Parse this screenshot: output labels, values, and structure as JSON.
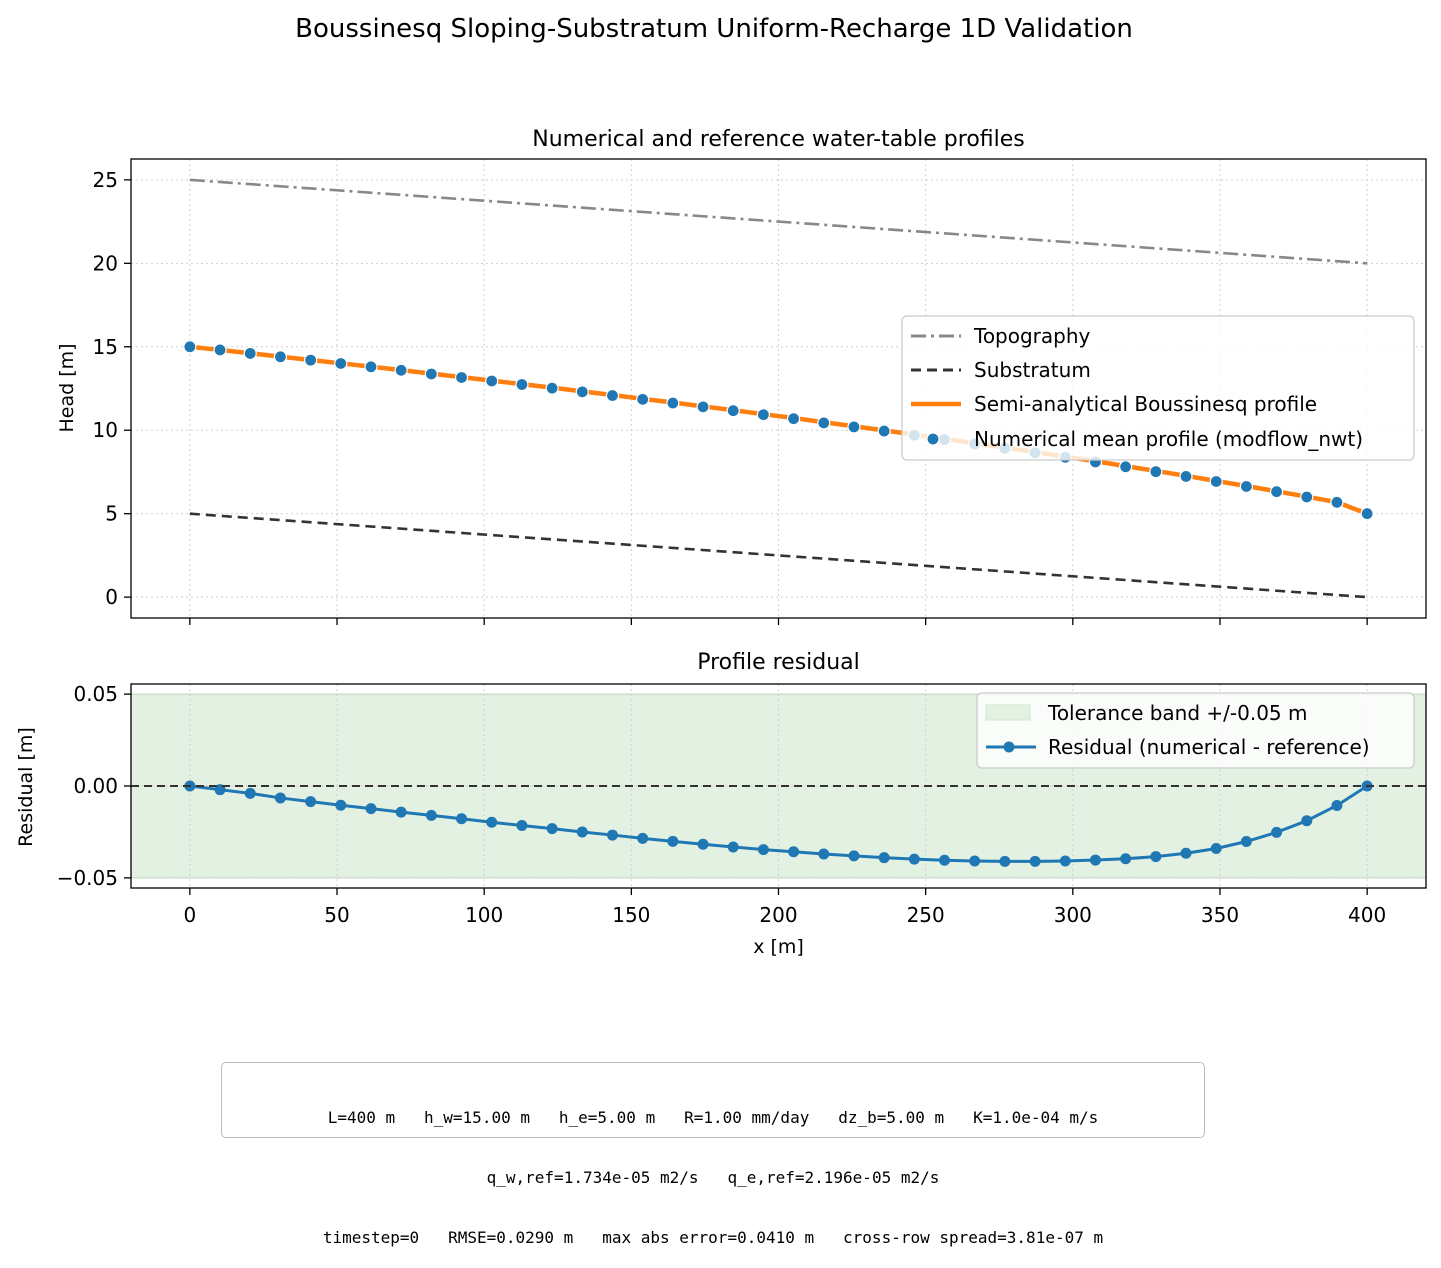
{
  "figure": {
    "suptitle": "Boussinesq Sloping-Substratum Uniform-Recharge 1D Validation"
  },
  "chart_data": [
    {
      "type": "line",
      "title": "Numerical and reference water-table profiles",
      "xlabel": "",
      "ylabel": "Head [m]",
      "xlim": [
        -20,
        420
      ],
      "ylim": [
        -1.25,
        26.25
      ],
      "xticks": [
        0,
        50,
        100,
        150,
        200,
        250,
        300,
        350,
        400
      ],
      "yticks": [
        0,
        5,
        10,
        15,
        20,
        25
      ],
      "ytick_labels": [
        "0",
        "5",
        "10",
        "15",
        "20",
        "25"
      ],
      "grid": true,
      "legend_position": "center-right",
      "series": [
        {
          "name": "Topography",
          "style": "dashdot",
          "color": "#888888",
          "x": [
            0,
            400
          ],
          "y": [
            25,
            20
          ]
        },
        {
          "name": "Substratum",
          "style": "dashed",
          "color": "#333333",
          "x": [
            0,
            400
          ],
          "y": [
            5,
            0
          ]
        },
        {
          "name": "Semi-analytical Boussinesq profile",
          "style": "solid",
          "color": "#ff7f0e",
          "x": [
            0,
            10.26,
            20.51,
            30.77,
            41.03,
            51.28,
            61.54,
            71.79,
            82.05,
            92.31,
            102.56,
            112.82,
            123.08,
            133.33,
            143.59,
            153.85,
            164.1,
            174.36,
            184.62,
            194.87,
            205.13,
            215.38,
            225.64,
            235.9,
            246.15,
            256.41,
            266.67,
            276.92,
            287.18,
            297.44,
            307.69,
            317.95,
            328.21,
            338.46,
            348.72,
            358.97,
            369.23,
            379.49,
            389.74,
            400
          ],
          "y": [
            15.0,
            14.81,
            14.61,
            14.41,
            14.21,
            14.01,
            13.81,
            13.6,
            13.39,
            13.18,
            12.97,
            12.76,
            12.55,
            12.33,
            12.11,
            11.88,
            11.66,
            11.43,
            11.2,
            10.96,
            10.73,
            10.48,
            10.24,
            9.99,
            9.74,
            9.48,
            9.22,
            8.96,
            8.69,
            8.42,
            8.14,
            7.85,
            7.56,
            7.27,
            6.96,
            6.66,
            6.34,
            6.02,
            5.69,
            5.0
          ]
        },
        {
          "name": "Numerical mean profile (modflow_nwt)",
          "style": "markers",
          "color": "#1f77b4",
          "x": [
            0,
            10.26,
            20.51,
            30.77,
            41.03,
            51.28,
            61.54,
            71.79,
            82.05,
            92.31,
            102.56,
            112.82,
            123.08,
            133.33,
            143.59,
            153.85,
            164.1,
            174.36,
            184.62,
            194.87,
            205.13,
            215.38,
            225.64,
            235.9,
            246.15,
            256.41,
            266.67,
            276.92,
            287.18,
            297.44,
            307.69,
            317.95,
            328.21,
            338.46,
            348.72,
            358.97,
            369.23,
            379.49,
            389.74,
            400
          ],
          "y": [
            15.0,
            14.81,
            14.6,
            14.4,
            14.2,
            14.0,
            13.8,
            13.59,
            13.37,
            13.16,
            12.95,
            12.74,
            12.52,
            12.3,
            12.08,
            11.85,
            11.63,
            11.4,
            11.17,
            10.93,
            10.69,
            10.44,
            10.2,
            9.95,
            9.7,
            9.44,
            9.18,
            8.92,
            8.65,
            8.38,
            8.1,
            7.81,
            7.52,
            7.23,
            6.93,
            6.63,
            6.32,
            6.0,
            5.68,
            5.0
          ]
        }
      ]
    },
    {
      "type": "line",
      "title": "Profile residual",
      "xlabel": "x [m]",
      "ylabel": "Residual [m]",
      "xlim": [
        -20,
        420
      ],
      "ylim": [
        -0.0555,
        0.0555
      ],
      "xticks": [
        0,
        50,
        100,
        150,
        200,
        250,
        300,
        350,
        400
      ],
      "xtick_labels": [
        "0",
        "50",
        "100",
        "150",
        "200",
        "250",
        "300",
        "350",
        "400"
      ],
      "yticks": [
        0.05,
        0.0,
        -0.05
      ],
      "ytick_labels": [
        "0.05",
        "0.00",
        "−0.05"
      ],
      "grid": true,
      "legend_position": "top-right",
      "tolerance_band": {
        "name": "Tolerance band +/-0.05 m",
        "lower": -0.05,
        "upper": 0.05,
        "color": "#e2f1e2"
      },
      "series": [
        {
          "name": "Residual (numerical - reference)",
          "style": "line-markers",
          "color": "#1f77b4",
          "x": [
            0,
            10.26,
            20.51,
            30.77,
            41.03,
            51.28,
            61.54,
            71.79,
            82.05,
            92.31,
            102.56,
            112.82,
            123.08,
            133.33,
            143.59,
            153.85,
            164.1,
            174.36,
            184.62,
            194.87,
            205.13,
            215.38,
            225.64,
            235.9,
            246.15,
            256.41,
            266.67,
            276.92,
            287.18,
            297.44,
            307.69,
            317.95,
            328.21,
            338.46,
            348.72,
            358.97,
            369.23,
            379.49,
            389.74,
            400
          ],
          "y": [
            0.0,
            -0.002,
            -0.004,
            -0.0065,
            -0.0085,
            -0.0105,
            -0.0123,
            -0.0142,
            -0.016,
            -0.0178,
            -0.0197,
            -0.0215,
            -0.0232,
            -0.025,
            -0.0267,
            -0.0285,
            -0.0301,
            -0.0317,
            -0.0332,
            -0.0346,
            -0.0358,
            -0.037,
            -0.038,
            -0.039,
            -0.0398,
            -0.0404,
            -0.0408,
            -0.041,
            -0.041,
            -0.0408,
            -0.0403,
            -0.0396,
            -0.0384,
            -0.0366,
            -0.034,
            -0.0302,
            -0.0252,
            -0.0189,
            -0.0106,
            0.0
          ]
        },
        {
          "name": "",
          "style": "dashed-reference",
          "color": "#333333",
          "x": [
            -20,
            420
          ],
          "y": [
            0,
            0
          ]
        }
      ]
    }
  ],
  "infobox": {
    "line1": "L=400 m   h_w=15.00 m   h_e=5.00 m   R=1.00 mm/day   dz_b=5.00 m   K=1.0e-04 m/s",
    "line2": "q_w,ref=1.734e-05 m2/s   q_e,ref=2.196e-05 m2/s",
    "line3": "timestep=0   RMSE=0.0290 m   max abs error=0.0410 m   cross-row spread=3.81e-07 m"
  }
}
